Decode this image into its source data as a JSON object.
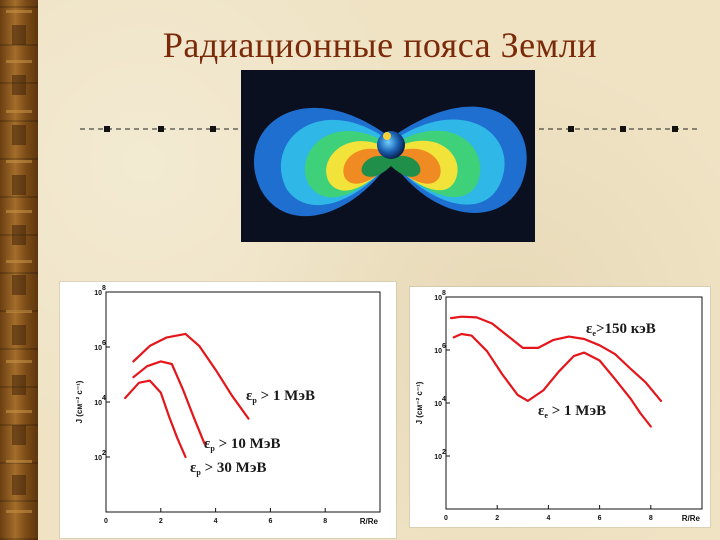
{
  "title": "Радиационные пояса Земли",
  "image": {
    "name": "radiation-belts-illustration"
  },
  "left_chart": {
    "y_ticks": [
      "10",
      "10",
      "10",
      "10"
    ],
    "y_exps": [
      "8",
      "6",
      "4",
      "2"
    ],
    "x_ticks": [
      "0",
      "2",
      "4",
      "6",
      "8"
    ],
    "ylabel": "J (см⁻² с⁻¹)",
    "xlabel": "R/Re",
    "labels": [
      {
        "sym": "ε",
        "sub": "p",
        "text": " > 1 МэВ"
      },
      {
        "sym": "ε",
        "sub": "p",
        "text": " > 10 МэВ"
      },
      {
        "sym": "ε",
        "sub": "p",
        "text": " > 30 МэВ"
      }
    ]
  },
  "right_chart": {
    "y_ticks": [
      "10",
      "10",
      "10",
      "10"
    ],
    "y_exps": [
      "8",
      "6",
      "4",
      "2"
    ],
    "x_ticks": [
      "0",
      "2",
      "4",
      "6",
      "8"
    ],
    "ylabel": "J (см⁻² с⁻¹)",
    "xlabel": "R/Re",
    "labels": [
      {
        "sym": "ε",
        "sub": "e",
        "text": ">150 кэВ"
      },
      {
        "sym": "ε",
        "sub": "e",
        "text": " > 1 МэВ"
      }
    ]
  },
  "chart_data": [
    {
      "type": "line",
      "xlabel": "R/Re",
      "ylabel": "J (см⁻² с⁻¹)",
      "xlim": [
        0,
        10
      ],
      "ylim": [
        1,
        100000000
      ],
      "yscale": "log",
      "series": [
        {
          "name": "εp > 1 МэВ",
          "x": [
            1.0,
            1.6,
            2.2,
            2.9,
            3.4,
            4.0,
            4.6,
            5.2
          ],
          "y": [
            300000,
            1100000,
            2200000,
            3000000,
            1100000,
            150000,
            17000,
            2500
          ]
        },
        {
          "name": "εp > 10 МэВ",
          "x": [
            1.0,
            1.5,
            2.0,
            2.4,
            2.8,
            3.2,
            3.6
          ],
          "y": [
            80000,
            200000,
            300000,
            240000,
            30000,
            2800,
            300
          ]
        },
        {
          "name": "εp > 30 МэВ",
          "x": [
            0.7,
            1.2,
            1.6,
            2.0,
            2.3,
            2.6,
            2.9
          ],
          "y": [
            14000,
            50000,
            60000,
            22000,
            3000,
            500,
            100
          ]
        }
      ]
    },
    {
      "type": "line",
      "xlabel": "R/Re",
      "ylabel": "J (см⁻² с⁻¹)",
      "xlim": [
        0,
        10
      ],
      "ylim": [
        1,
        100000000
      ],
      "yscale": "log",
      "series": [
        {
          "name": "εe >150 кэВ",
          "x": [
            0.2,
            0.6,
            1.2,
            1.8,
            2.4,
            3.0,
            3.6,
            4.2,
            4.8,
            5.4,
            6.0,
            6.6,
            7.2,
            7.8,
            8.4
          ],
          "y": [
            16000000,
            18000000,
            17000000,
            10000000,
            3500000,
            1200000,
            1200000,
            2400000,
            3200000,
            2600000,
            1500000,
            700000,
            200000,
            60000,
            12000
          ]
        },
        {
          "name": "εe > 1 МэВ",
          "x": [
            0.3,
            0.6,
            1.0,
            1.6,
            2.2,
            2.8,
            3.2,
            3.8,
            4.4,
            5.0,
            5.4,
            6.0,
            6.6,
            7.2,
            7.6,
            8.0
          ],
          "y": [
            3000000,
            4000000,
            3500000,
            900000,
            120000,
            20000,
            12000,
            30000,
            150000,
            600000,
            800000,
            400000,
            80000,
            15000,
            4000,
            1300
          ]
        }
      ]
    }
  ]
}
